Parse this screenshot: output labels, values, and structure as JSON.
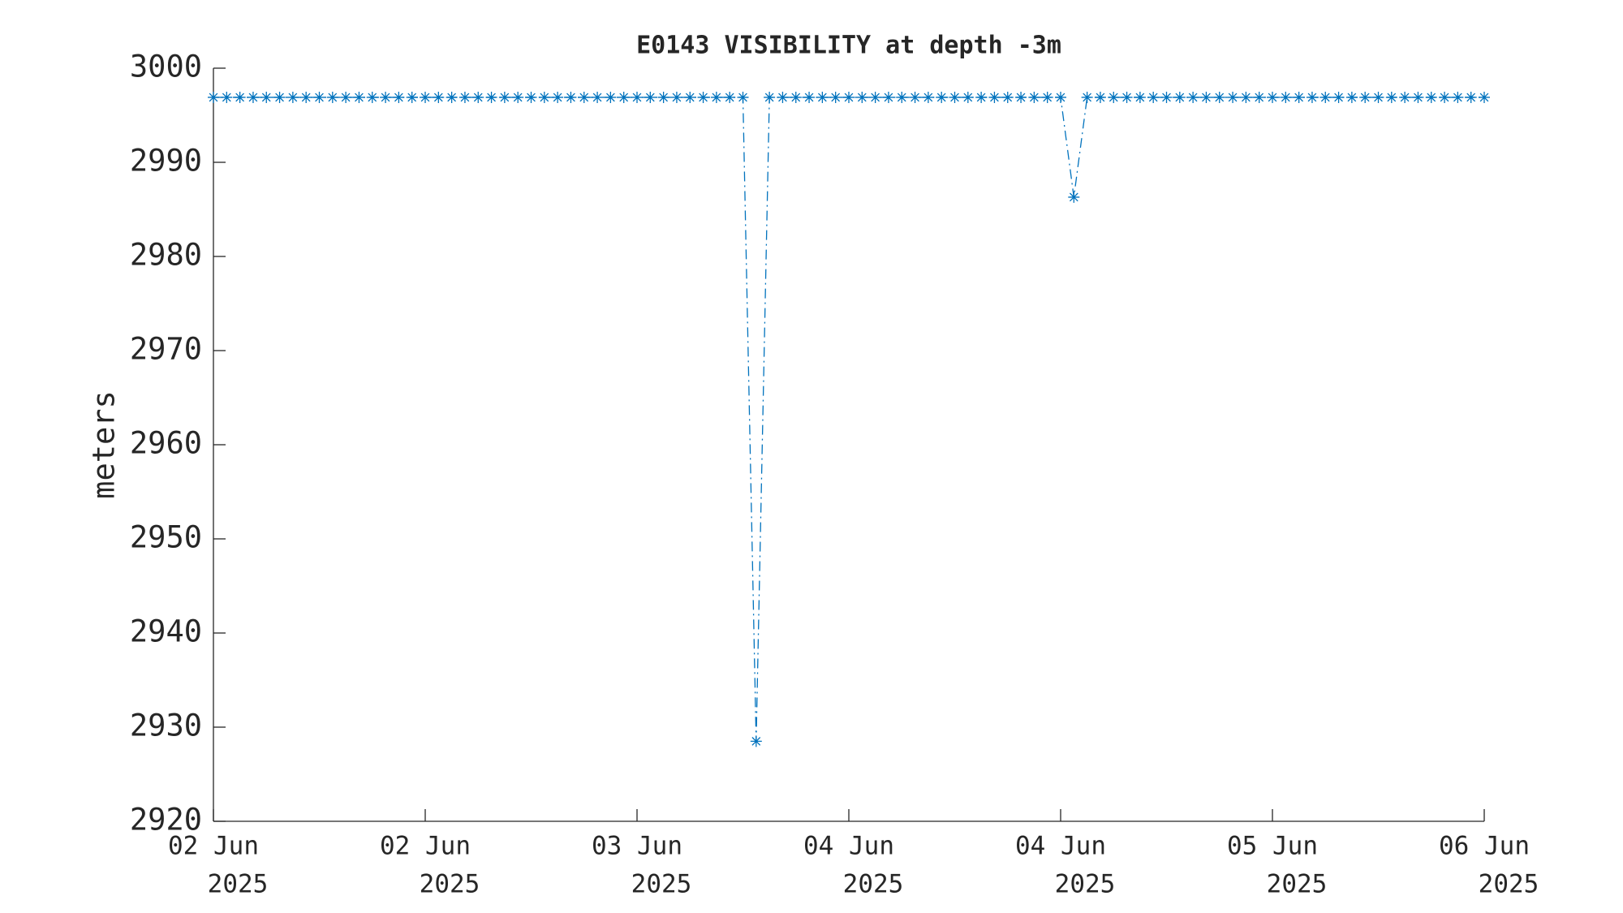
{
  "chart_data": {
    "type": "line",
    "title": "E0143 VISIBILITY at depth -3m",
    "ylabel": "meters",
    "series": [
      {
        "color": "#0072BD",
        "marker": "asterisk",
        "linestyle": "dashdot",
        "values": [
          2996.9,
          2996.9,
          2996.9,
          2996.9,
          2996.9,
          2996.9,
          2996.9,
          2996.9,
          2996.9,
          2996.9,
          2996.9,
          2996.9,
          2996.9,
          2996.9,
          2996.9,
          2996.9,
          2996.9,
          2996.9,
          2996.9,
          2996.9,
          2996.9,
          2996.9,
          2996.9,
          2996.9,
          2996.9,
          2996.9,
          2996.9,
          2996.9,
          2996.9,
          2996.9,
          2996.9,
          2996.9,
          2996.9,
          2996.9,
          2996.9,
          2996.9,
          2996.9,
          2996.9,
          2996.9,
          2996.9,
          2996.9,
          2928.5,
          2996.9,
          2996.9,
          2996.9,
          2996.9,
          2996.9,
          2996.9,
          2996.9,
          2996.9,
          2996.9,
          2996.9,
          2996.9,
          2996.9,
          2996.9,
          2996.9,
          2996.9,
          2996.9,
          2996.9,
          2996.9,
          2996.9,
          2996.9,
          2996.9,
          2996.9,
          2996.9,
          2986.3,
          2996.9,
          2996.9,
          2996.9,
          2996.9,
          2996.9,
          2996.9,
          2996.9,
          2996.9,
          2996.9,
          2996.9,
          2996.9,
          2996.9,
          2996.9,
          2996.9,
          2996.9,
          2996.9,
          2996.9,
          2996.9,
          2996.9,
          2996.9,
          2996.9,
          2996.9,
          2996.9,
          2996.9,
          2996.9,
          2996.9,
          2996.9,
          2996.9,
          2996.9,
          2996.9,
          2996.9
        ]
      }
    ],
    "xlim": [
      0,
      96
    ],
    "xticks": [
      {
        "value": 0,
        "label": [
          "02 Jun",
          "2025"
        ]
      },
      {
        "value": 16,
        "label": [
          "02 Jun",
          "2025"
        ]
      },
      {
        "value": 32,
        "label": [
          "03 Jun",
          "2025"
        ]
      },
      {
        "value": 48,
        "label": [
          "04 Jun",
          "2025"
        ]
      },
      {
        "value": 64,
        "label": [
          "04 Jun",
          "2025"
        ]
      },
      {
        "value": 80,
        "label": [
          "05 Jun",
          "2025"
        ]
      },
      {
        "value": 96,
        "label": [
          "06 Jun",
          "2025"
        ]
      }
    ],
    "ylim": [
      2920,
      3000
    ],
    "yticks": [
      2920,
      2930,
      2940,
      2950,
      2960,
      2970,
      2980,
      2990,
      3000
    ]
  }
}
